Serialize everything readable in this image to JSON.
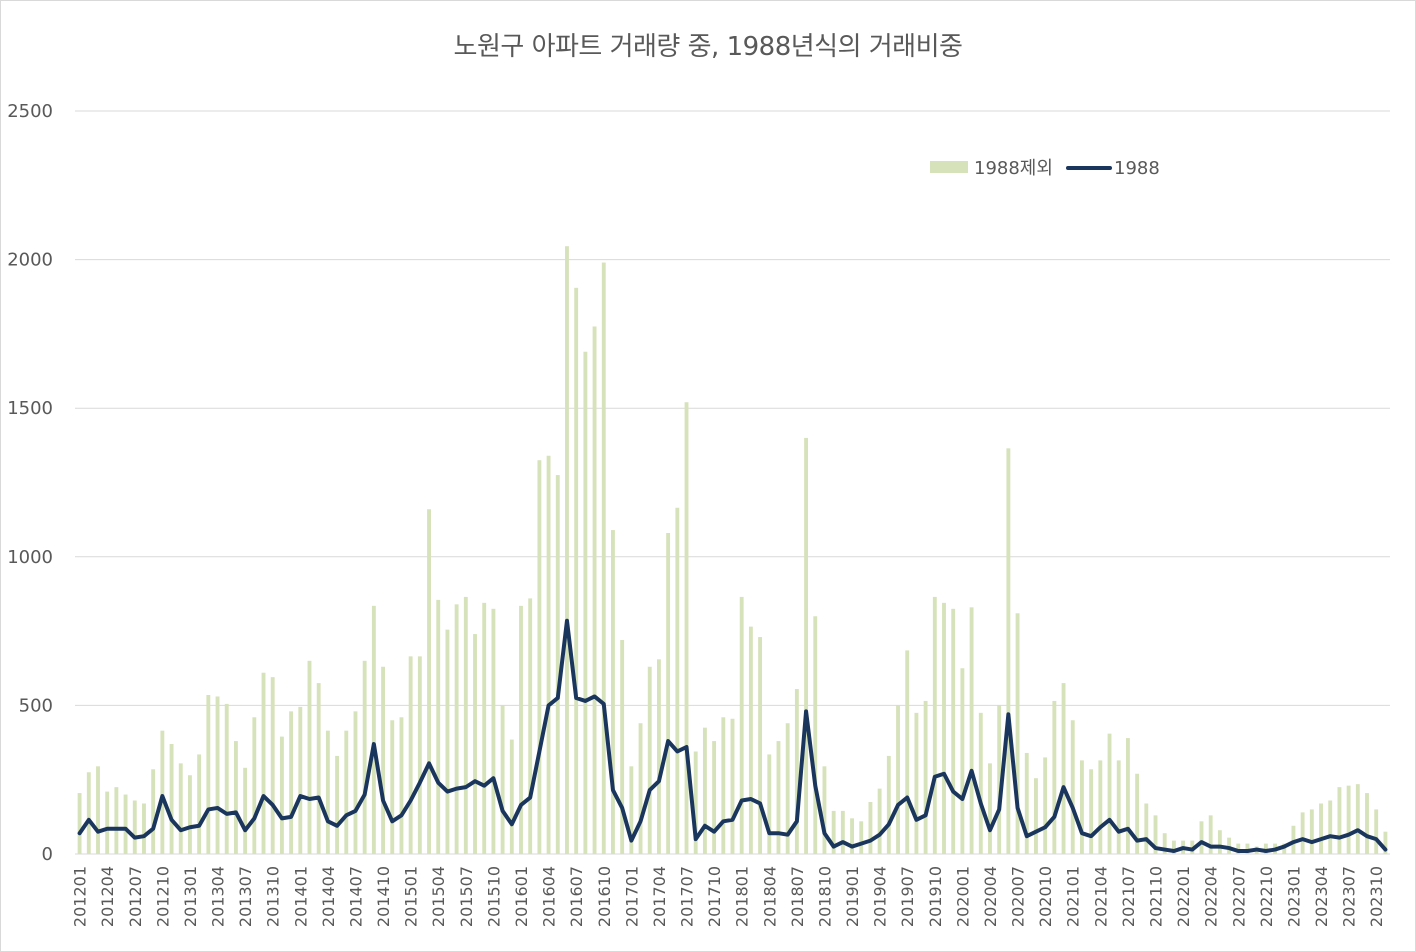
{
  "chart_data": {
    "type": "bar",
    "title": "노원구 아파트 거래량 중, 1988년식의 거래비중",
    "xlabel": "",
    "ylabel": "",
    "ylim": [
      0,
      2500
    ],
    "yticks": [
      0,
      500,
      1000,
      1500,
      2000,
      2500
    ],
    "grid": true,
    "legend_position": "top-right",
    "x": [
      "201201",
      "201202",
      "201203",
      "201204",
      "201205",
      "201206",
      "201207",
      "201208",
      "201209",
      "201210",
      "201211",
      "201212",
      "201301",
      "201302",
      "201303",
      "201304",
      "201305",
      "201306",
      "201307",
      "201308",
      "201309",
      "201310",
      "201311",
      "201312",
      "201401",
      "201402",
      "201403",
      "201404",
      "201405",
      "201406",
      "201407",
      "201408",
      "201409",
      "201410",
      "201411",
      "201412",
      "201501",
      "201502",
      "201503",
      "201504",
      "201505",
      "201506",
      "201507",
      "201508",
      "201509",
      "201510",
      "201511",
      "201512",
      "201601",
      "201602",
      "201603",
      "201604",
      "201605",
      "201606",
      "201607",
      "201608",
      "201609",
      "201610",
      "201611",
      "201612",
      "201701",
      "201702",
      "201703",
      "201704",
      "201705",
      "201706",
      "201707",
      "201708",
      "201709",
      "201710",
      "201711",
      "201712",
      "201801",
      "201802",
      "201803",
      "201804",
      "201805",
      "201806",
      "201807",
      "201808",
      "201809",
      "201810",
      "201811",
      "201812",
      "201901",
      "201902",
      "201903",
      "201904",
      "201905",
      "201906",
      "201907",
      "201908",
      "201909",
      "201910",
      "201911",
      "201912",
      "202001",
      "202002",
      "202003",
      "202004",
      "202005",
      "202006",
      "202007",
      "202008",
      "202009",
      "202010",
      "202011",
      "202012",
      "202101",
      "202102",
      "202103",
      "202104",
      "202105",
      "202106",
      "202107",
      "202108",
      "202109",
      "202110",
      "202111",
      "202112",
      "202201",
      "202202",
      "202203",
      "202204",
      "202205",
      "202206",
      "202207",
      "202208",
      "202209",
      "202210",
      "202211",
      "202212",
      "202301",
      "202302",
      "202303",
      "202304",
      "202305",
      "202306",
      "202307",
      "202308",
      "202309",
      "202310",
      "202311"
    ],
    "x_tick_labels": [
      "201201",
      "201204",
      "201207",
      "201210",
      "201301",
      "201304",
      "201307",
      "201310",
      "201401",
      "201404",
      "201407",
      "201410",
      "201501",
      "201504",
      "201507",
      "201510",
      "201601",
      "201604",
      "201607",
      "201610",
      "201701",
      "201704",
      "201707",
      "201710",
      "201801",
      "201804",
      "201807",
      "201810",
      "201901",
      "201904",
      "201907",
      "201910",
      "202001",
      "202004",
      "202007",
      "202010",
      "202101",
      "202104",
      "202107",
      "202110",
      "202201",
      "202204",
      "202207",
      "202210",
      "202301",
      "202304",
      "202307",
      "202310"
    ],
    "series": [
      {
        "name": "1988제외",
        "type": "bar",
        "color": "#d6e2b9",
        "values": [
          205,
          275,
          295,
          210,
          225,
          200,
          180,
          170,
          285,
          415,
          370,
          305,
          265,
          335,
          535,
          530,
          505,
          380,
          290,
          460,
          610,
          595,
          395,
          480,
          495,
          650,
          575,
          415,
          330,
          415,
          480,
          650,
          835,
          630,
          450,
          460,
          665,
          665,
          1160,
          855,
          755,
          840,
          865,
          740,
          845,
          825,
          500,
          385,
          835,
          860,
          1325,
          1340,
          1275,
          2045,
          1905,
          1690,
          1775,
          1990,
          1090,
          720,
          295,
          440,
          630,
          655,
          1080,
          1165,
          1520,
          345,
          425,
          380,
          460,
          455,
          865,
          765,
          730,
          335,
          380,
          440,
          555,
          1400,
          800,
          295,
          145,
          145,
          120,
          110,
          175,
          220,
          330,
          500,
          685,
          475,
          515,
          865,
          845,
          825,
          625,
          830,
          475,
          305,
          500,
          1365,
          810,
          340,
          255,
          325,
          515,
          575,
          450,
          315,
          285,
          315,
          405,
          315,
          390,
          270,
          170,
          130,
          70,
          45,
          45,
          45,
          110,
          130,
          80,
          55,
          35,
          35,
          25,
          35,
          35,
          35,
          95,
          140,
          150,
          170,
          180,
          225,
          230,
          235,
          205,
          150,
          75
        ]
      },
      {
        "name": "1988",
        "type": "line",
        "color": "#1b365d",
        "values": [
          70,
          115,
          75,
          85,
          85,
          85,
          55,
          60,
          85,
          195,
          115,
          80,
          90,
          95,
          150,
          155,
          135,
          140,
          80,
          120,
          195,
          165,
          120,
          125,
          195,
          185,
          190,
          110,
          95,
          130,
          145,
          200,
          370,
          180,
          110,
          130,
          180,
          240,
          305,
          240,
          210,
          220,
          225,
          245,
          230,
          255,
          145,
          100,
          165,
          190,
          345,
          500,
          525,
          785,
          525,
          515,
          530,
          505,
          215,
          155,
          45,
          110,
          215,
          245,
          380,
          345,
          360,
          50,
          95,
          75,
          110,
          115,
          180,
          185,
          170,
          70,
          70,
          65,
          110,
          480,
          230,
          70,
          25,
          40,
          25,
          35,
          45,
          65,
          100,
          165,
          190,
          115,
          130,
          260,
          270,
          210,
          185,
          280,
          170,
          80,
          150,
          470,
          155,
          60,
          75,
          90,
          125,
          225,
          155,
          70,
          60,
          90,
          115,
          75,
          85,
          45,
          50,
          20,
          15,
          10,
          20,
          15,
          40,
          25,
          25,
          20,
          10,
          10,
          15,
          10,
          15,
          25,
          40,
          50,
          40,
          50,
          60,
          55,
          65,
          80,
          60,
          50,
          15
        ]
      }
    ]
  }
}
